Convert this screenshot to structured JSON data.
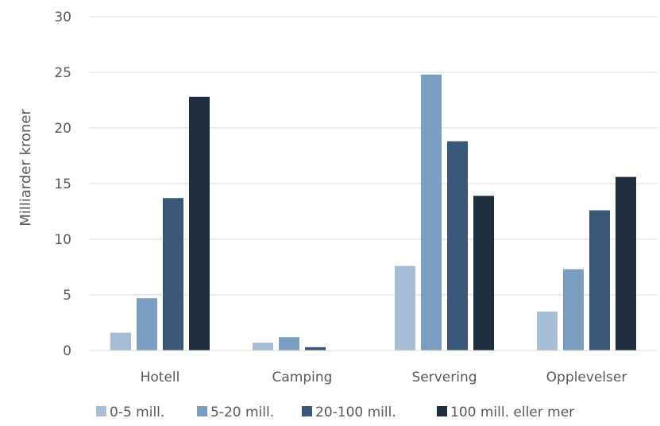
{
  "colors": {
    "series": [
      "#a7bed6",
      "#7a9dc0",
      "#3b5778",
      "#1e2d3e"
    ],
    "grid": "#d9d9d9",
    "text": "#595959"
  },
  "chart_data": {
    "type": "bar",
    "title": "",
    "xlabel": "",
    "ylabel": "Milliarder kroner",
    "ylim": [
      0,
      30
    ],
    "yticks": [
      0,
      5,
      10,
      15,
      20,
      25,
      30
    ],
    "grid": true,
    "legend_position": "bottom",
    "categories": [
      "Hotell",
      "Camping",
      "Servering",
      "Opplevelser"
    ],
    "series": [
      {
        "name": "0-5 mill.",
        "values": [
          1.6,
          0.7,
          7.6,
          3.5
        ]
      },
      {
        "name": "5-20 mill.",
        "values": [
          4.7,
          1.2,
          24.8,
          7.3
        ]
      },
      {
        "name": "20-100 mill.",
        "values": [
          13.7,
          0.3,
          18.8,
          12.6
        ]
      },
      {
        "name": "100 mill. eller mer",
        "values": [
          22.8,
          0,
          13.9,
          15.6
        ]
      }
    ]
  }
}
